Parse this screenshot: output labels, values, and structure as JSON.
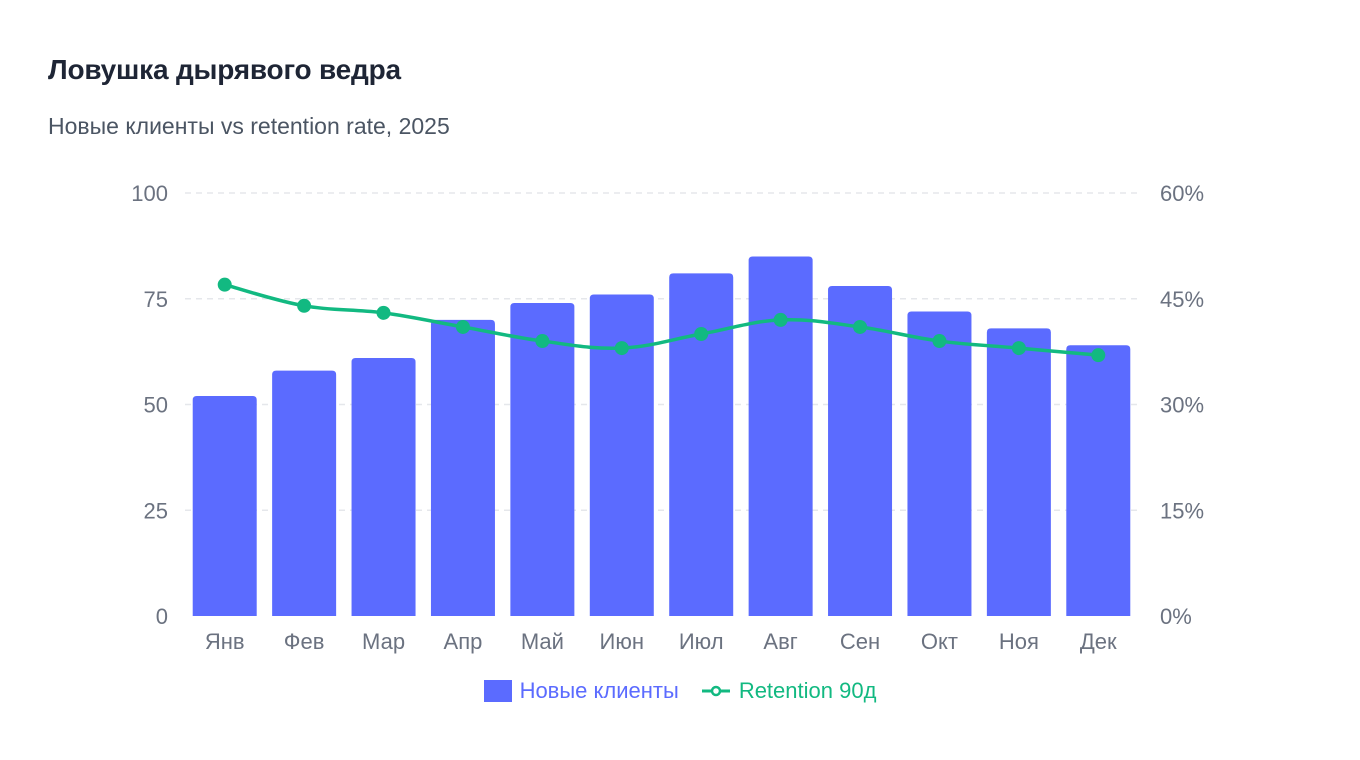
{
  "header": {
    "title": "Ловушка дырявого ведра",
    "subtitle": "Новые клиенты vs retention rate, 2025"
  },
  "colors": {
    "bars": "#5b6bff",
    "line": "#12b981",
    "grid": "#e5e7eb",
    "tick": "#6b7280"
  },
  "chart_data": {
    "type": "bar",
    "categories": [
      "Янв",
      "Фев",
      "Мар",
      "Апр",
      "Май",
      "Июн",
      "Июл",
      "Авг",
      "Сен",
      "Окт",
      "Ноя",
      "Дек"
    ],
    "series": [
      {
        "name": "Новые клиенты",
        "type": "bar",
        "axis": "left",
        "values": [
          52,
          58,
          61,
          70,
          74,
          76,
          81,
          85,
          78,
          72,
          68,
          64
        ]
      },
      {
        "name": "Retention 90д",
        "type": "line",
        "axis": "right",
        "values": [
          47,
          44,
          43,
          41,
          39,
          38,
          40,
          42,
          41,
          39,
          38,
          37
        ]
      }
    ],
    "y_left": {
      "min": 0,
      "max": 100,
      "ticks": [
        "0",
        "25",
        "50",
        "75",
        "100"
      ]
    },
    "y_right": {
      "min": 0,
      "max": 60,
      "ticks": [
        "0%",
        "15%",
        "30%",
        "45%",
        "60%"
      ]
    },
    "grid": true,
    "legend_position": "bottom-center"
  }
}
